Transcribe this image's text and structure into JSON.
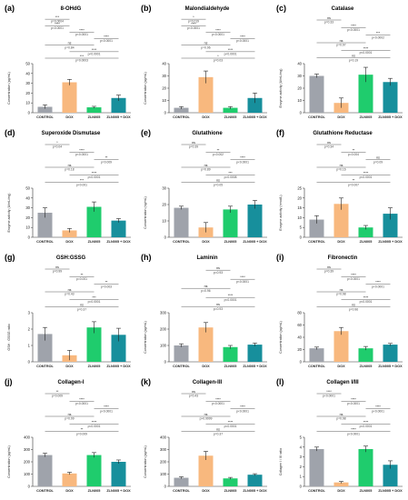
{
  "figure": {
    "category_labels": [
      "CONTROL",
      "DOX",
      "ZLN005",
      "ZLN005 + DOX"
    ],
    "colors": {
      "control": "#9fa3ab",
      "dox": "#f8b87e",
      "zln005": "#1fcc6d",
      "zln005_dox": "#178f9c"
    }
  },
  "chart_data": [
    {
      "type": "bar",
      "panel_label": "(a)",
      "title": "8-OHdG",
      "ylabel": "Concentration (pg/mL)",
      "categories": [
        "CONTROL",
        "DOX",
        "ZLN005",
        "ZLN005 + DOX"
      ],
      "values": [
        6,
        31,
        5.5,
        15
      ],
      "errors": [
        2,
        3,
        1,
        3
      ],
      "ylim": [
        0,
        50
      ],
      "yticks": [
        "0",
        "10",
        "20",
        "30",
        "40",
        "50"
      ],
      "sig_labels": [
        "***",
        "p=0.0004",
        "****",
        "p<0.0001",
        "****",
        "p<0.0001",
        "****",
        "p<0.0001",
        "ns",
        "p=0.84",
        "****",
        "p<0.0001",
        "***",
        "p=0.0003"
      ]
    },
    {
      "type": "bar",
      "panel_label": "(b)",
      "title": "Malondialdehyde",
      "ylabel": "Concentration (pg/mL)",
      "categories": [
        "CONTROL",
        "DOX",
        "ZLN005",
        "ZLN005 + DOX"
      ],
      "values": [
        4,
        29,
        4,
        12
      ],
      "errors": [
        1,
        5,
        1,
        4
      ],
      "ylim": [
        0,
        40
      ],
      "yticks": [
        "0",
        "10",
        "20",
        "30",
        "40"
      ],
      "sig_labels": [
        "*",
        "p=0.019",
        "****",
        "p<0.0001",
        "****",
        "p<0.0001",
        "****",
        "p<0.0001",
        "ns",
        "p=0.96",
        "****",
        "p<0.0001",
        "*",
        "p=0.03"
      ]
    },
    {
      "type": "bar",
      "panel_label": "(c)",
      "title": "Catalase",
      "ylabel": "Enzyme activity (U/mL/mg)",
      "categories": [
        "CONTROL",
        "DOX",
        "ZLN005",
        "ZLN005 + DOX"
      ],
      "values": [
        30,
        8,
        31,
        25
      ],
      "errors": [
        1.5,
        4,
        6,
        3
      ],
      "ylim": [
        0,
        40
      ],
      "yticks": [
        "0",
        "10",
        "20",
        "30",
        "40"
      ],
      "sig_labels": [
        "ns",
        "p=0.33",
        "****",
        "p<0.0001",
        "***",
        "p<0.0002",
        "ns",
        "p=0.97",
        "****",
        "p<0.0001",
        "ns",
        "p=0.19"
      ]
    },
    {
      "type": "bar",
      "panel_label": "(d)",
      "title": "Superoxide Dismutase",
      "ylabel": "Enzyme activity (U/mL/mg)",
      "categories": [
        "CONTROL",
        "DOX",
        "ZLN005",
        "ZLN005 + DOX"
      ],
      "values": [
        25,
        7,
        31,
        17
      ],
      "errors": [
        5,
        2,
        5,
        2
      ],
      "ylim": [
        0,
        50
      ],
      "yticks": [
        "0",
        "10",
        "20",
        "30",
        "40",
        "50"
      ],
      "sig_labels": [
        "*",
        "p=0.04",
        "****",
        "p<0.0001",
        "**",
        "p=0.009",
        "ns",
        "p=0.18",
        "****",
        "p<0.0001",
        "***",
        "p<0.001"
      ]
    },
    {
      "type": "bar",
      "panel_label": "(e)",
      "title": "Glutathione",
      "ylabel": "Concentration (ng/mL)",
      "categories": [
        "CONTROL",
        "DOX",
        "ZLN005",
        "ZLN005 + DOX"
      ],
      "values": [
        18,
        6,
        17,
        20
      ],
      "errors": [
        1,
        3,
        2,
        2.5
      ],
      "ylim": [
        0,
        30
      ],
      "yticks": [
        "0",
        "10",
        "20",
        "30"
      ],
      "sig_labels": [
        "ns",
        "p=0.39",
        "**",
        "p=0.002",
        "****",
        "p<0.0001",
        "ns",
        "p=0.89",
        "***",
        "p=0.0008",
        "ns",
        "p=0.05"
      ]
    },
    {
      "type": "bar",
      "panel_label": "(f)",
      "title": "Glutathione Reductase",
      "ylabel": "Enzyme activity (nmol/L)",
      "categories": [
        "CONTROL",
        "DOX",
        "ZLN005",
        "ZLN005 + DOX"
      ],
      "values": [
        9,
        17,
        5,
        12
      ],
      "errors": [
        2,
        3,
        1,
        3
      ],
      "ylim": [
        0,
        25
      ],
      "yticks": [
        "0",
        "5",
        "10",
        "15",
        "20",
        "25"
      ],
      "sig_labels": [
        "ns",
        "p=0.34",
        "**",
        "p=0.004",
        "ns",
        "p=0.09",
        "ns",
        "p=0.16",
        "****",
        "p<0.0001",
        "**",
        "p=0.007"
      ]
    },
    {
      "type": "bar",
      "panel_label": "(g)",
      "title": "GSH:GSSG",
      "ylabel": "GSH : GSSG ratio",
      "categories": [
        "CONTROL",
        "DOX",
        "ZLN005",
        "ZLN005 + DOX"
      ],
      "values": [
        1.7,
        0.4,
        2.1,
        1.65
      ],
      "errors": [
        0.4,
        0.3,
        0.35,
        0.4
      ],
      "ylim": [
        0,
        3
      ],
      "yticks": [
        "0",
        "1",
        "2",
        "3"
      ],
      "sig_labels": [
        "ns",
        "p=0.99",
        "**",
        "p=0.001",
        "**",
        "p=0.003",
        "ns",
        "p=0.43",
        "***",
        "p=0.0001",
        "ns",
        "p=0.37"
      ]
    },
    {
      "type": "bar",
      "panel_label": "(h)",
      "title": "Laminin",
      "ylabel": "Concentration (pg/mL)",
      "categories": [
        "CONTROL",
        "DOX",
        "ZLN005",
        "ZLN005 + DOX"
      ],
      "values": [
        100,
        210,
        90,
        105
      ],
      "errors": [
        10,
        30,
        10,
        10
      ],
      "ylim": [
        0,
        300
      ],
      "yticks": [
        "0",
        "100",
        "200",
        "300"
      ],
      "sig_labels": [
        "ns",
        "p=0.93",
        "****",
        "p<0.0001",
        "ns",
        "p=0.96",
        "****",
        "p<0.0001",
        "ns",
        "p=0.93"
      ]
    },
    {
      "type": "bar",
      "panel_label": "(i)",
      "title": "Fibronectin",
      "ylabel": "Concentration (pg/mL)",
      "categories": [
        "CONTROL",
        "DOX",
        "ZLN005",
        "ZLN005 + DOX"
      ],
      "values": [
        22,
        50,
        22,
        28
      ],
      "errors": [
        2,
        6,
        3,
        2
      ],
      "ylim": [
        0,
        80
      ],
      "yticks": [
        "0",
        "20",
        "40",
        "60",
        "80"
      ],
      "sig_labels": [
        "ns",
        "p=0.39",
        "****",
        "p<0.0001",
        "****",
        "p<0.0001",
        "ns",
        "p=0.98",
        "****",
        "p<0.0001",
        "ns",
        "p=0.96"
      ]
    },
    {
      "type": "bar",
      "panel_label": "(j)",
      "title": "Collagen-I",
      "ylabel": "Concentration (pg/mL)",
      "categories": [
        "CONTROL",
        "DOX",
        "ZLN005",
        "ZLN005 + DOX"
      ],
      "values": [
        255,
        105,
        255,
        200
      ],
      "errors": [
        15,
        10,
        20,
        15
      ],
      "ylim": [
        0,
        400
      ],
      "yticks": [
        "0",
        "100",
        "200",
        "300",
        "400"
      ],
      "sig_labels": [
        "**",
        "p=0.009",
        "****",
        "p<0.0001",
        "****",
        "p<0.0001",
        "ns",
        "p=0.99",
        "****",
        "p<0.0001",
        "**",
        "p=0.009"
      ]
    },
    {
      "type": "bar",
      "panel_label": "(k)",
      "title": "Collagen-III",
      "ylabel": "Concentration (pg/mL)",
      "categories": [
        "CONTROL",
        "DOX",
        "ZLN005",
        "ZLN005 + DOX"
      ],
      "values": [
        70,
        250,
        65,
        95
      ],
      "errors": [
        8,
        35,
        8,
        8
      ],
      "ylim": [
        0,
        400
      ],
      "yticks": [
        "0",
        "100",
        "200",
        "300",
        "400"
      ],
      "sig_labels": [
        "ns",
        "p=0.43",
        "****",
        "p<0.0001",
        "****",
        "p<0.0001",
        "ns",
        "p>0.9999",
        "****",
        "p<0.0001",
        "ns",
        "p=0.37"
      ]
    },
    {
      "type": "bar",
      "panel_label": "(l)",
      "title": "Collagen I/III",
      "ylabel": "Collagen I / III ratio",
      "categories": [
        "CONTROL",
        "DOX",
        "ZLN005",
        "ZLN005 + DOX"
      ],
      "values": [
        3.8,
        0.4,
        3.8,
        2.2
      ],
      "errors": [
        0.2,
        0.1,
        0.3,
        0.4
      ],
      "ylim": [
        0,
        5
      ],
      "yticks": [
        "0",
        "1",
        "2",
        "3",
        "4",
        "5"
      ],
      "sig_labels": [
        "****",
        "p<0.0001",
        "****",
        "p<0.0001",
        "****",
        "p<0.0001",
        "ns",
        "p=0.98",
        "****",
        "p<0.0001",
        "****",
        "p<0.0001"
      ]
    }
  ]
}
